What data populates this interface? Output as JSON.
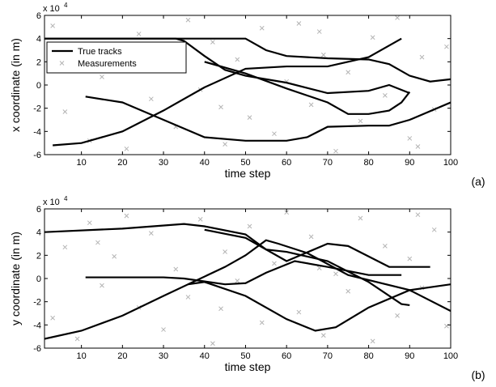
{
  "chart_data": [
    {
      "type": "line",
      "panel_label": "(a)",
      "xlabel": "time step",
      "ylabel": "x coordinate (in m)",
      "y_multiplier": {
        "base": "x 10",
        "exponent": "4"
      },
      "xlim": [
        1,
        100
      ],
      "xticks": [
        10,
        20,
        30,
        40,
        50,
        60,
        70,
        80,
        90,
        100
      ],
      "ylim": [
        -6,
        6
      ],
      "yticks": [
        -6,
        -4,
        -2,
        0,
        2,
        4,
        6
      ],
      "legend": "upper left",
      "grid": false,
      "series": [
        {
          "name": "Measurements",
          "style": "x",
          "color": "#b4b4b4",
          "x": [
            3,
            6,
            9,
            12,
            15,
            18,
            21,
            24,
            27,
            30,
            33,
            36,
            39,
            42,
            45,
            48,
            51,
            54,
            57,
            60,
            63,
            66,
            69,
            72,
            75,
            78,
            81,
            84,
            87,
            90,
            93,
            96,
            99,
            14,
            44,
            68,
            92
          ],
          "values": [
            5.1,
            -2.3,
            3.2,
            -4.8,
            0.7,
            2.9,
            -5.5,
            4.4,
            -1.2,
            1.8,
            -3.6,
            5.6,
            -0.4,
            3.7,
            -5.1,
            2.2,
            -2.8,
            4.9,
            -4.2,
            0.3,
            5.3,
            -1.7,
            2.6,
            -5.7,
            1.1,
            -3.1,
            4.1,
            -0.9,
            5.8,
            -4.6,
            2.4,
            -2.1,
            3.3,
            1.5,
            -1.9,
            4.6,
            -5.3
          ]
        },
        {
          "name": "True tracks",
          "style": "line",
          "color": "#000000",
          "x": [
            1,
            20,
            40,
            50,
            55,
            60,
            70,
            80,
            85,
            90,
            95,
            100
          ],
          "values": [
            4,
            4,
            4,
            4,
            3,
            2.5,
            2.3,
            2.2,
            1.8,
            0.8,
            0.3,
            0.5
          ]
        },
        {
          "style": "line",
          "color": "#000000",
          "x": [
            1,
            20,
            33,
            35,
            40,
            45,
            50,
            60,
            70,
            80,
            85,
            90
          ],
          "values": [
            4,
            4,
            4,
            3.8,
            2.5,
            1.3,
            0.8,
            0.2,
            -0.7,
            -0.5,
            0,
            -0.7
          ]
        },
        {
          "style": "line",
          "color": "#000000",
          "x": [
            11,
            20,
            30,
            40,
            50,
            60,
            65,
            70,
            80,
            85,
            90,
            100
          ],
          "values": [
            -1,
            -1.5,
            -3,
            -4.5,
            -4.8,
            -4.8,
            -4.5,
            -3.6,
            -3.5,
            -3.5,
            -3,
            -1.5
          ]
        },
        {
          "style": "line",
          "color": "#000000",
          "x": [
            3,
            10,
            20,
            30,
            40,
            50,
            60,
            70,
            80,
            88
          ],
          "values": [
            -5.2,
            -5,
            -4,
            -2.2,
            -0.2,
            1.4,
            1.6,
            1.6,
            2.4,
            4
          ]
        },
        {
          "style": "line",
          "color": "#000000",
          "x": [
            40,
            50,
            60,
            70,
            75,
            80,
            85,
            88,
            90
          ],
          "values": [
            2,
            1,
            -0.3,
            -1.5,
            -2.5,
            -2.5,
            -2.2,
            -1.5,
            -0.6
          ]
        }
      ]
    },
    {
      "type": "line",
      "panel_label": "(b)",
      "xlabel": "time step",
      "ylabel": "y coordinate (in m)",
      "y_multiplier": {
        "base": "x 10",
        "exponent": "4"
      },
      "xlim": [
        1,
        100
      ],
      "xticks": [
        10,
        20,
        30,
        40,
        50,
        60,
        70,
        80,
        90,
        100
      ],
      "ylim": [
        -6,
        6
      ],
      "yticks": [
        -6,
        -4,
        -2,
        0,
        2,
        4,
        6
      ],
      "grid": false,
      "series": [
        {
          "style": "x",
          "color": "#b4b4b4",
          "x": [
            3,
            6,
            9,
            12,
            15,
            18,
            21,
            24,
            27,
            30,
            33,
            36,
            39,
            42,
            45,
            48,
            51,
            54,
            57,
            60,
            63,
            66,
            69,
            72,
            75,
            78,
            81,
            84,
            87,
            90,
            93,
            96,
            99,
            14,
            44,
            68,
            92
          ],
          "values": [
            -3.4,
            2.7,
            -5.2,
            4.8,
            -0.6,
            1.9,
            5.4,
            -2.5,
            3.9,
            -4.4,
            0.8,
            -1.6,
            5.1,
            -5.6,
            2.3,
            -0.2,
            4.5,
            -3.8,
            1.3,
            5.7,
            -2.9,
            3.6,
            -4.9,
            0.4,
            -1.1,
            5.2,
            -5.4,
            2.8,
            -3.2,
            1.7,
            -0.8,
            4.2,
            -4.1,
            3.1,
            -2.6,
            0.9,
            5.5
          ]
        },
        {
          "style": "line",
          "color": "#000000",
          "x": [
            1,
            20,
            35,
            40,
            50,
            55,
            60,
            70,
            80,
            88,
            90
          ],
          "values": [
            4,
            4.3,
            4.7,
            4.5,
            3.8,
            2.5,
            2.3,
            1.5,
            -0.3,
            -2.2,
            -2.3
          ]
        },
        {
          "style": "line",
          "color": "#000000",
          "x": [
            1,
            10,
            20,
            30,
            36,
            40,
            50,
            60,
            67,
            72,
            80,
            90,
            100
          ],
          "values": [
            -5.2,
            -4.5,
            -3.2,
            -1.5,
            -0.5,
            -0.3,
            -1.5,
            -3.5,
            -4.5,
            -4.2,
            -2.5,
            -1,
            -0.5
          ]
        },
        {
          "style": "line",
          "color": "#000000",
          "x": [
            11,
            30,
            35,
            45,
            50,
            55,
            62,
            70,
            80,
            88
          ],
          "values": [
            0.1,
            0.1,
            0,
            -0.5,
            -0.4,
            0.5,
            1.5,
            1,
            0.3,
            0.3
          ]
        },
        {
          "style": "line",
          "color": "#000000",
          "x": [
            36,
            45,
            50,
            55,
            58,
            65,
            75,
            90,
            100
          ],
          "values": [
            -0.5,
            1,
            2,
            3.3,
            3,
            2.2,
            0.3,
            -1,
            -2.8
          ]
        },
        {
          "style": "line",
          "color": "#000000",
          "x": [
            40,
            50,
            60,
            70,
            75,
            85,
            95
          ],
          "values": [
            4.2,
            3.5,
            1.5,
            3,
            2.8,
            1,
            1
          ]
        }
      ]
    }
  ]
}
